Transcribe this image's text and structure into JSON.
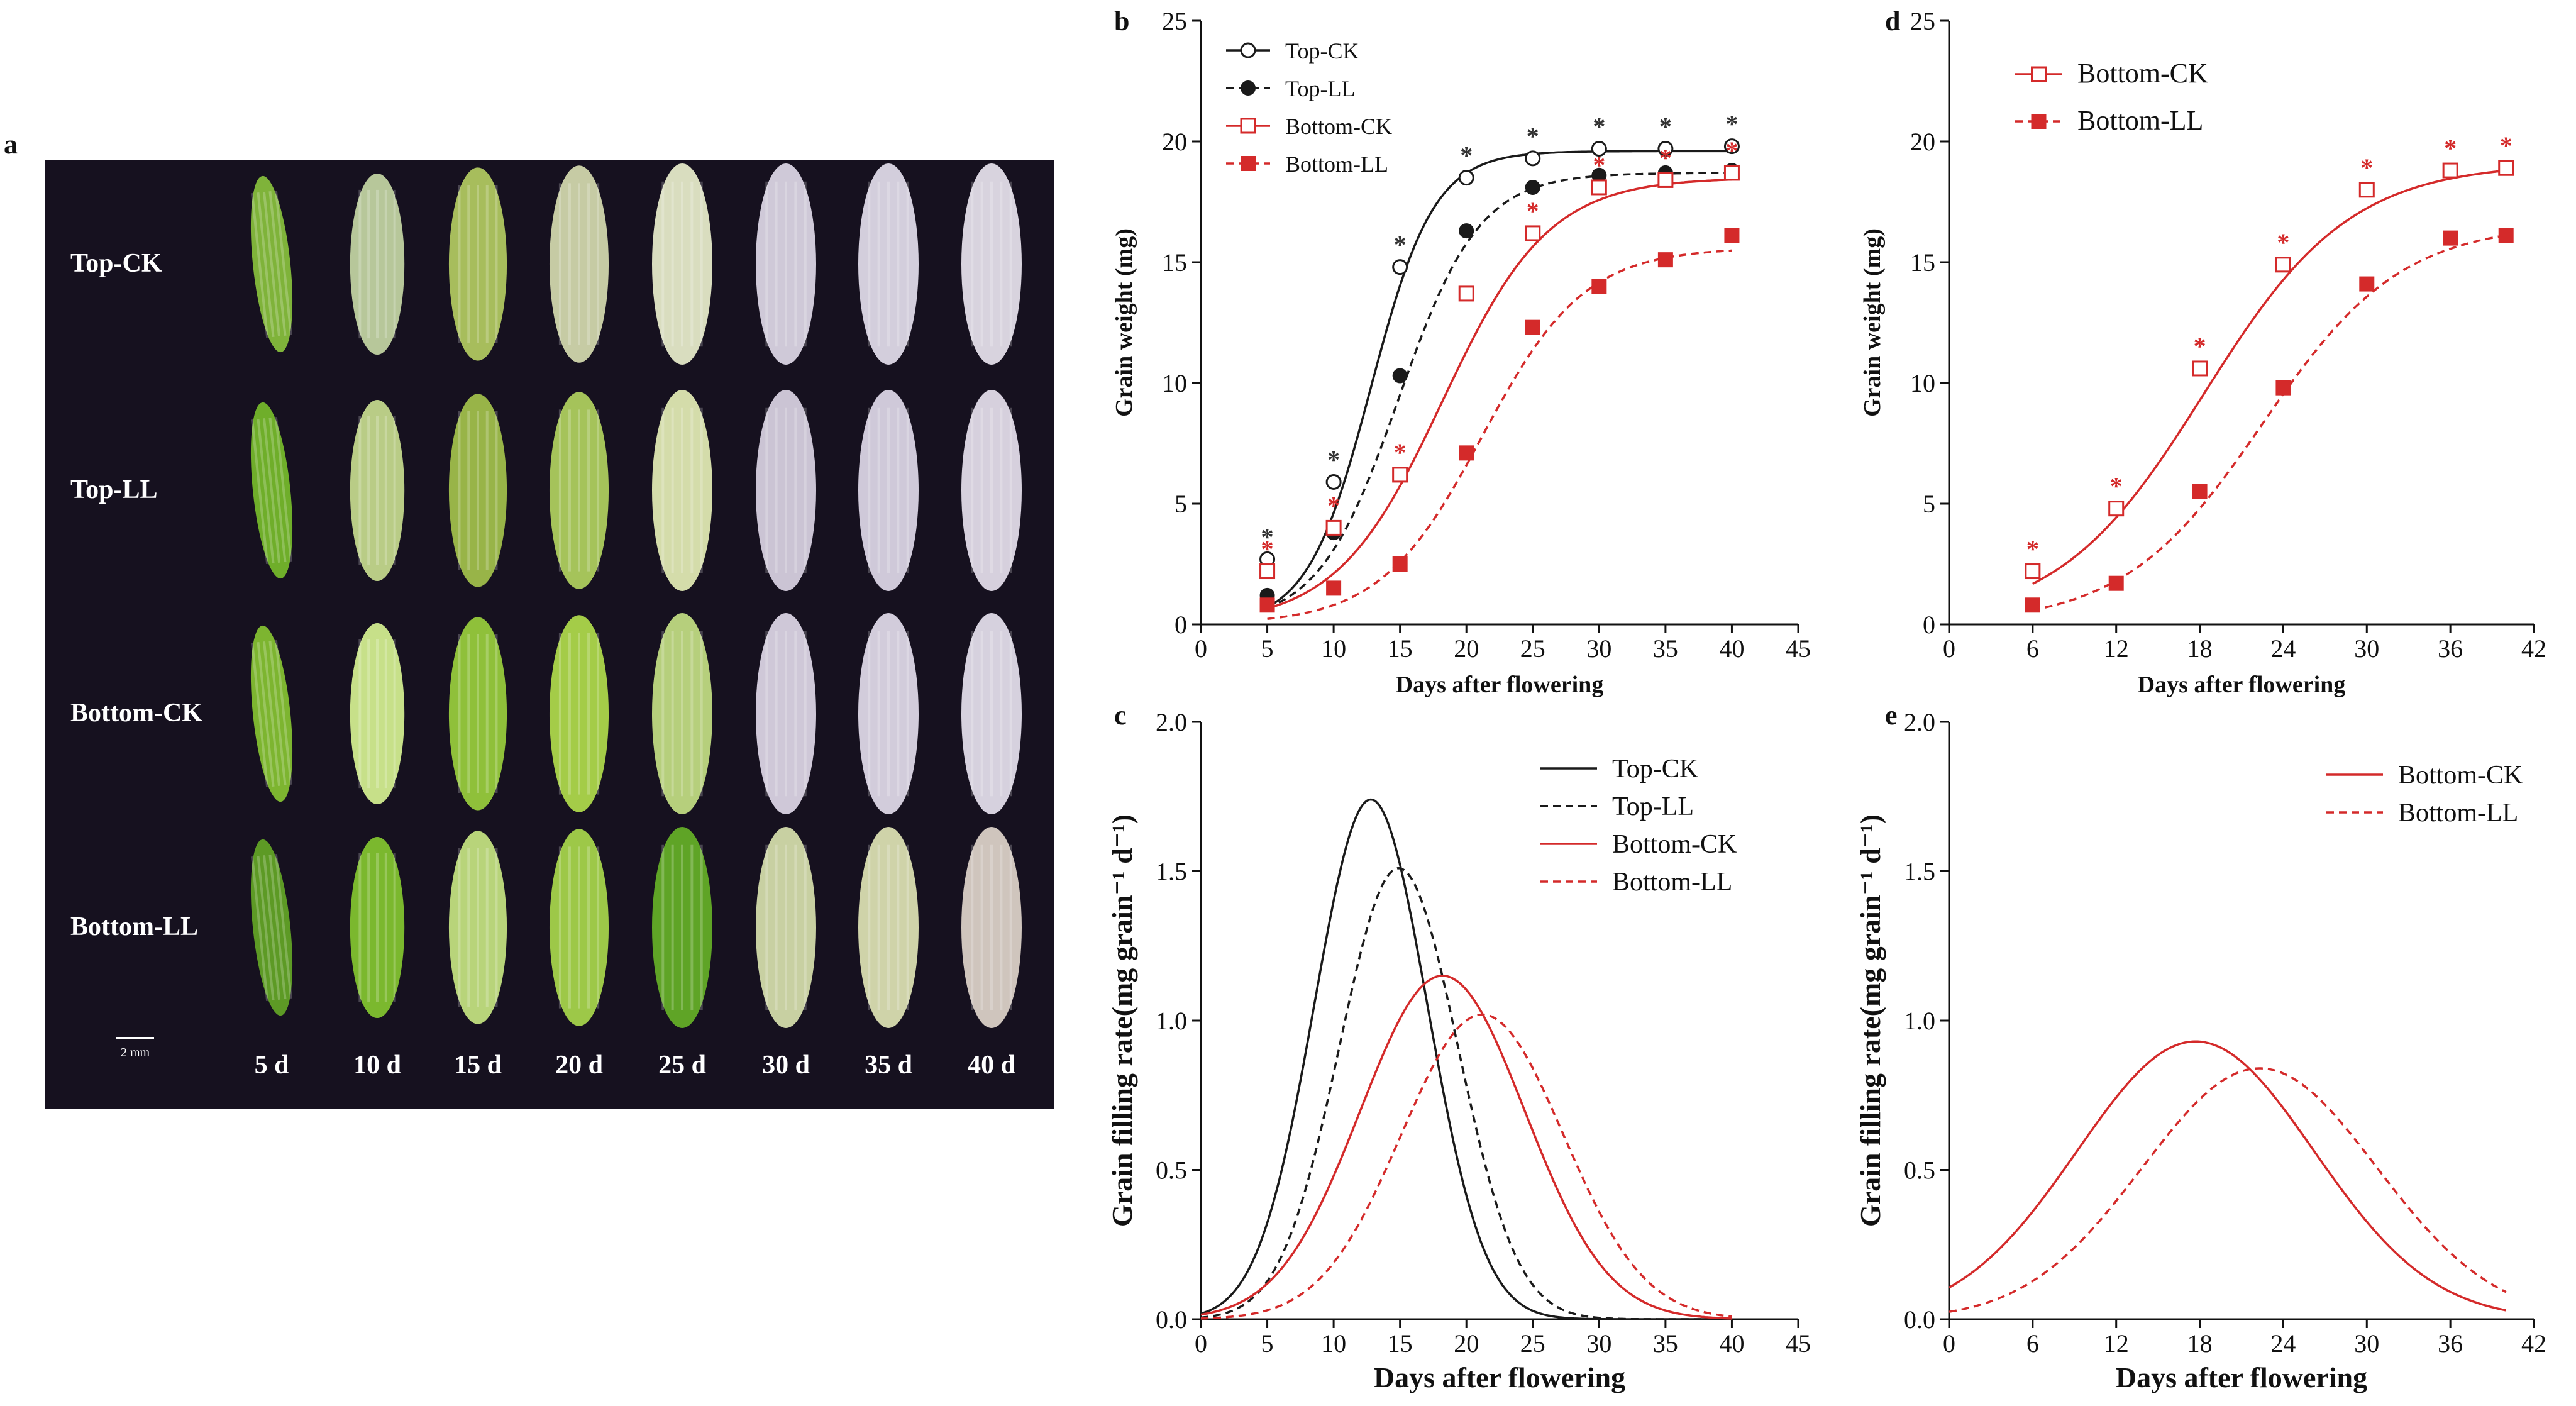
{
  "figure": {
    "panel_letters": [
      "a",
      "b",
      "c",
      "d",
      "e"
    ],
    "photo": {
      "rows": [
        "Top-CK",
        "Top-LL",
        "Bottom-CK",
        "Bottom-LL"
      ],
      "columns": [
        "5 d",
        "10 d",
        "15 d",
        "20 d",
        "25 d",
        "30 d",
        "35 d",
        "40 d"
      ],
      "scale_bar": "2 mm"
    }
  },
  "colors": {
    "black": "#1a1a1a",
    "red": "#d42a2a",
    "star_black": "#333333",
    "photo_bg": "#16111f"
  },
  "chart_data": [
    {
      "id": "b",
      "type": "line",
      "xlabel": "Days after flowering",
      "ylabel": "Grain weight (mg)",
      "xlim": [
        0,
        45
      ],
      "ylim": [
        0,
        25
      ],
      "xticks": [
        0,
        5,
        10,
        15,
        20,
        25,
        30,
        35,
        40,
        45
      ],
      "yticks": [
        0,
        5,
        10,
        15,
        20,
        25
      ],
      "x": [
        5,
        10,
        15,
        20,
        25,
        30,
        35,
        40
      ],
      "series": [
        {
          "name": "Top-CK",
          "color": "black",
          "dash": false,
          "marker": "open-circle",
          "values": [
            2.7,
            5.9,
            14.8,
            18.5,
            19.3,
            19.7,
            19.7,
            19.8
          ],
          "fit": {
            "A": 19.6,
            "k": 0.42,
            "t0": 12.8
          },
          "stars": [
            true,
            true,
            true,
            true,
            true,
            true,
            true,
            true
          ]
        },
        {
          "name": "Top-LL",
          "color": "black",
          "dash": true,
          "marker": "filled-circle",
          "values": [
            1.2,
            3.8,
            10.3,
            16.3,
            18.1,
            18.6,
            18.7,
            18.8
          ],
          "fit": {
            "A": 18.7,
            "k": 0.33,
            "t0": 14.9
          },
          "stars": [
            false,
            false,
            false,
            false,
            false,
            false,
            false,
            false
          ]
        },
        {
          "name": "Bottom-CK",
          "color": "red",
          "dash": false,
          "marker": "open-square",
          "values": [
            2.2,
            4.0,
            6.2,
            13.7,
            16.2,
            18.1,
            18.4,
            18.7
          ],
          "fit": {
            "A": 18.5,
            "k": 0.25,
            "t0": 18.2
          },
          "stars": [
            true,
            true,
            true,
            false,
            true,
            true,
            true,
            true
          ]
        },
        {
          "name": "Bottom-LL",
          "color": "red",
          "dash": true,
          "marker": "filled-square",
          "values": [
            0.8,
            1.5,
            2.5,
            7.1,
            12.3,
            14.0,
            15.1,
            16.1
          ],
          "fit": {
            "A": 15.6,
            "k": 0.26,
            "t0": 21.2
          },
          "stars": [
            false,
            false,
            false,
            false,
            false,
            false,
            false,
            false
          ]
        }
      ]
    },
    {
      "id": "c",
      "type": "line",
      "xlabel": "Days after flowering",
      "ylabel": "Grain filling rate(mg grain⁻¹ d⁻¹)",
      "xlim": [
        0,
        45
      ],
      "ylim": [
        0,
        2.0
      ],
      "xticks": [
        0,
        5,
        10,
        15,
        20,
        25,
        30,
        35,
        40,
        45
      ],
      "yticks": [
        0.0,
        0.5,
        1.0,
        1.5,
        2.0
      ],
      "series": [
        {
          "name": "Top-CK",
          "color": "black",
          "dash": false,
          "peak_day": 12.8,
          "peak_rate": 1.74,
          "sigma": 4.25,
          "x_range": [
            0,
            40
          ]
        },
        {
          "name": "Top-LL",
          "color": "black",
          "dash": true,
          "peak_day": 14.9,
          "peak_rate": 1.51,
          "sigma": 4.45,
          "x_range": [
            0,
            40
          ]
        },
        {
          "name": "Bottom-CK",
          "color": "red",
          "dash": false,
          "peak_day": 18.2,
          "peak_rate": 1.15,
          "sigma": 6.2,
          "x_range": [
            0,
            40
          ]
        },
        {
          "name": "Bottom-LL",
          "color": "red",
          "dash": true,
          "peak_day": 21.2,
          "peak_rate": 1.02,
          "sigma": 6.1,
          "x_range": [
            0,
            40
          ]
        }
      ]
    },
    {
      "id": "d",
      "type": "line",
      "xlabel": "Days after flowering",
      "ylabel": "Grain weight (mg)",
      "xlim": [
        0,
        42
      ],
      "ylim": [
        0,
        25
      ],
      "xticks": [
        0,
        6,
        12,
        18,
        24,
        30,
        36,
        42
      ],
      "yticks": [
        0,
        5,
        10,
        15,
        20,
        25
      ],
      "x": [
        6,
        12,
        18,
        24,
        30,
        36,
        40
      ],
      "series": [
        {
          "name": "Bottom-CK",
          "color": "red",
          "dash": false,
          "marker": "open-square",
          "values": [
            2.2,
            4.8,
            10.6,
            14.9,
            18.0,
            18.8,
            18.9
          ],
          "fit": {
            "A": 19.1,
            "k": 0.19,
            "t0": 18.3
          },
          "stars": [
            true,
            true,
            true,
            true,
            true,
            true,
            true
          ]
        },
        {
          "name": "Bottom-LL",
          "color": "red",
          "dash": true,
          "marker": "filled-square",
          "values": [
            0.8,
            1.7,
            5.5,
            9.8,
            14.1,
            16.0,
            16.1
          ],
          "fit": {
            "A": 16.6,
            "k": 0.2,
            "t0": 22.5
          },
          "stars": [
            false,
            false,
            false,
            false,
            false,
            false,
            false
          ]
        }
      ]
    },
    {
      "id": "e",
      "type": "line",
      "xlabel": "Days after flowering",
      "ylabel": "Grain filling rate(mg grain⁻¹ d⁻¹)",
      "xlim": [
        0,
        42
      ],
      "ylim": [
        0,
        2.0
      ],
      "xticks": [
        0,
        6,
        12,
        18,
        24,
        30,
        36,
        42
      ],
      "yticks": [
        0.0,
        0.5,
        1.0,
        1.5,
        2.0
      ],
      "series": [
        {
          "name": "Bottom-CK",
          "color": "red",
          "dash": false,
          "peak_day": 17.7,
          "peak_rate": 0.93,
          "sigma": 8.5,
          "x_range": [
            0,
            40
          ]
        },
        {
          "name": "Bottom-LL",
          "color": "red",
          "dash": true,
          "peak_day": 22.3,
          "peak_rate": 0.84,
          "sigma": 8.4,
          "x_range": [
            0,
            40
          ]
        }
      ]
    }
  ]
}
